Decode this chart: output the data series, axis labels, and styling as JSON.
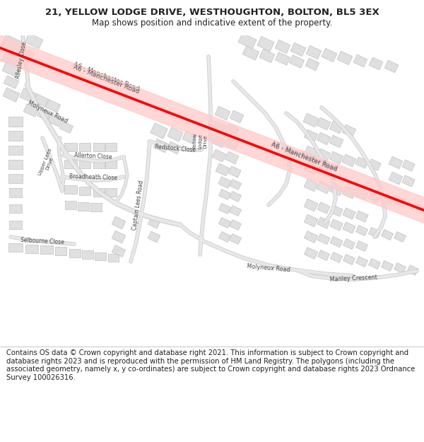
{
  "title_line1": "21, YELLOW LODGE DRIVE, WESTHOUGHTON, BOLTON, BL5 3EX",
  "title_line2": "Map shows position and indicative extent of the property.",
  "footer_text": "Contains OS data © Crown copyright and database right 2021. This information is subject to Crown copyright and database rights 2023 and is reproduced with the permission of HM Land Registry. The polygons (including the associated geometry, namely x, y co-ordinates) are subject to Crown copyright and database rights 2023 Ordnance Survey 100026316.",
  "map_bg": "#ffffff",
  "road_color": "#e8e8e8",
  "road_outline": "#cccccc",
  "building_fill": "#e0e0e0",
  "building_edge": "#c8c8c8",
  "a6_line_color": "#ff0000",
  "a6_fill_color": "#ffcccc",
  "text_color": "#222222",
  "road_label_color": "#444444",
  "title_fontsize": 9.5,
  "subtitle_fontsize": 8.5,
  "footer_fontsize": 7.2,
  "label_fontsize": 6.0,
  "figsize": [
    6.0,
    6.25
  ],
  "dpi": 100
}
